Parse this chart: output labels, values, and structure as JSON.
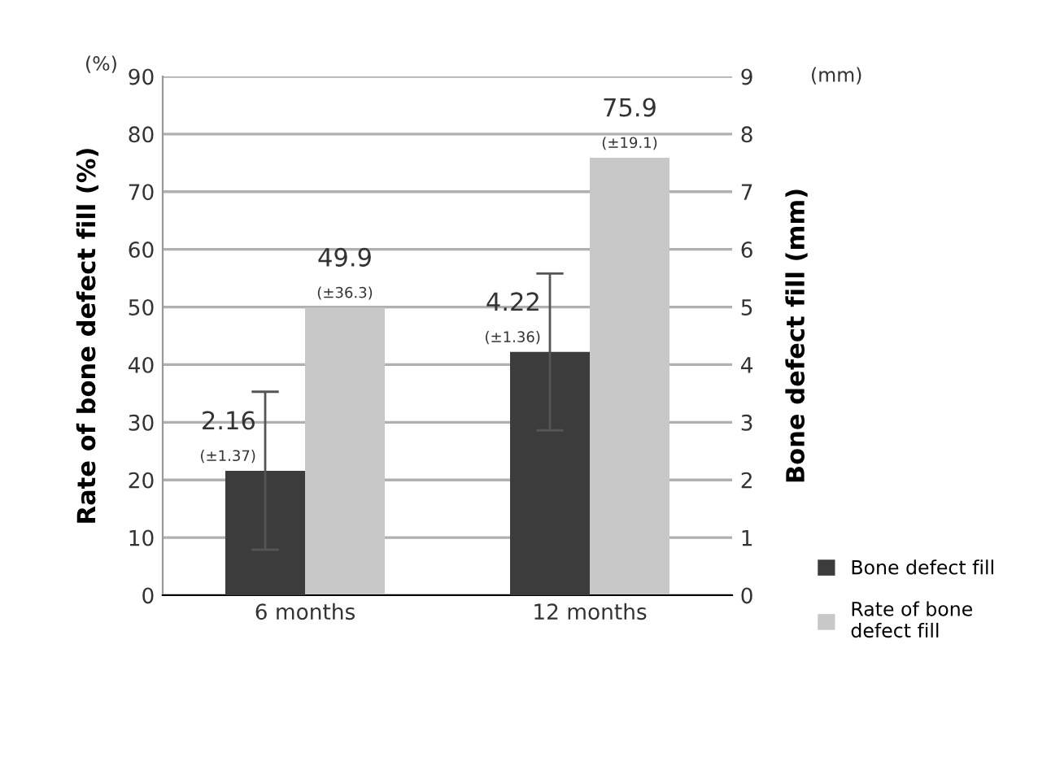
{
  "chart_data": {
    "type": "bar",
    "categories": [
      "6 months",
      "12 months"
    ],
    "ylabel": "Rate of bone defect fill (%)",
    "y2label": "Bone defect fill (mm)",
    "ylim": [
      0,
      90
    ],
    "yticks": [
      0,
      10,
      20,
      30,
      40,
      50,
      60,
      70,
      80,
      90
    ],
    "y2lim": [
      0,
      9
    ],
    "y2ticks": [
      0,
      1,
      2,
      3,
      4,
      5,
      6,
      7,
      8,
      9
    ],
    "grid": "y",
    "legend": "right",
    "annotations": [
      "(%)",
      "(mm)"
    ],
    "series": [
      {
        "name": "Bone defect fill",
        "color": "#3c3c3c",
        "axis": "y2",
        "values": [
          2.16,
          4.22
        ],
        "errors": [
          1.37,
          1.36
        ],
        "value_labels": [
          "2.16\n(±1.37)",
          "4.22\n(±1.36)"
        ]
      },
      {
        "name": "Rate of bone\ndefect fill",
        "color": "#c8c8c8",
        "values": [
          49.9,
          75.9
        ],
        "value_labels": [
          "49.9\n(±36.3)",
          "75.9\n(±19.1)"
        ]
      }
    ]
  }
}
